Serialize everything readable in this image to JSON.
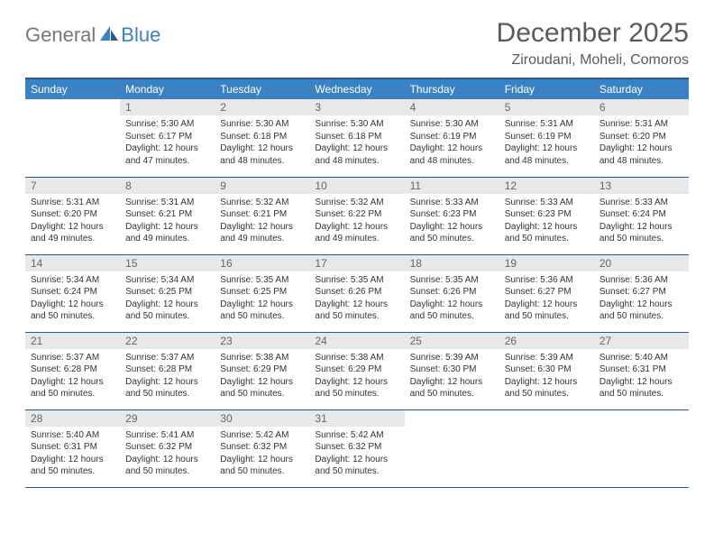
{
  "logo": {
    "part1": "General",
    "part2": "Blue"
  },
  "title": "December 2025",
  "location": "Ziroudani, Moheli, Comoros",
  "colors": {
    "header_bg": "#3b82c4",
    "header_border": "#2a5a8a",
    "daynum_bg": "#e8e8e8",
    "text": "#333333",
    "muted": "#666666",
    "logo_gray": "#777777",
    "logo_blue": "#3b82c4"
  },
  "weekdays": [
    "Sunday",
    "Monday",
    "Tuesday",
    "Wednesday",
    "Thursday",
    "Friday",
    "Saturday"
  ],
  "first_weekday_index": 1,
  "days": [
    {
      "n": 1,
      "sunrise": "5:30 AM",
      "sunset": "6:17 PM",
      "daylight": "12 hours and 47 minutes."
    },
    {
      "n": 2,
      "sunrise": "5:30 AM",
      "sunset": "6:18 PM",
      "daylight": "12 hours and 48 minutes."
    },
    {
      "n": 3,
      "sunrise": "5:30 AM",
      "sunset": "6:18 PM",
      "daylight": "12 hours and 48 minutes."
    },
    {
      "n": 4,
      "sunrise": "5:30 AM",
      "sunset": "6:19 PM",
      "daylight": "12 hours and 48 minutes."
    },
    {
      "n": 5,
      "sunrise": "5:31 AM",
      "sunset": "6:19 PM",
      "daylight": "12 hours and 48 minutes."
    },
    {
      "n": 6,
      "sunrise": "5:31 AM",
      "sunset": "6:20 PM",
      "daylight": "12 hours and 48 minutes."
    },
    {
      "n": 7,
      "sunrise": "5:31 AM",
      "sunset": "6:20 PM",
      "daylight": "12 hours and 49 minutes."
    },
    {
      "n": 8,
      "sunrise": "5:31 AM",
      "sunset": "6:21 PM",
      "daylight": "12 hours and 49 minutes."
    },
    {
      "n": 9,
      "sunrise": "5:32 AM",
      "sunset": "6:21 PM",
      "daylight": "12 hours and 49 minutes."
    },
    {
      "n": 10,
      "sunrise": "5:32 AM",
      "sunset": "6:22 PM",
      "daylight": "12 hours and 49 minutes."
    },
    {
      "n": 11,
      "sunrise": "5:33 AM",
      "sunset": "6:23 PM",
      "daylight": "12 hours and 50 minutes."
    },
    {
      "n": 12,
      "sunrise": "5:33 AM",
      "sunset": "6:23 PM",
      "daylight": "12 hours and 50 minutes."
    },
    {
      "n": 13,
      "sunrise": "5:33 AM",
      "sunset": "6:24 PM",
      "daylight": "12 hours and 50 minutes."
    },
    {
      "n": 14,
      "sunrise": "5:34 AM",
      "sunset": "6:24 PM",
      "daylight": "12 hours and 50 minutes."
    },
    {
      "n": 15,
      "sunrise": "5:34 AM",
      "sunset": "6:25 PM",
      "daylight": "12 hours and 50 minutes."
    },
    {
      "n": 16,
      "sunrise": "5:35 AM",
      "sunset": "6:25 PM",
      "daylight": "12 hours and 50 minutes."
    },
    {
      "n": 17,
      "sunrise": "5:35 AM",
      "sunset": "6:26 PM",
      "daylight": "12 hours and 50 minutes."
    },
    {
      "n": 18,
      "sunrise": "5:35 AM",
      "sunset": "6:26 PM",
      "daylight": "12 hours and 50 minutes."
    },
    {
      "n": 19,
      "sunrise": "5:36 AM",
      "sunset": "6:27 PM",
      "daylight": "12 hours and 50 minutes."
    },
    {
      "n": 20,
      "sunrise": "5:36 AM",
      "sunset": "6:27 PM",
      "daylight": "12 hours and 50 minutes."
    },
    {
      "n": 21,
      "sunrise": "5:37 AM",
      "sunset": "6:28 PM",
      "daylight": "12 hours and 50 minutes."
    },
    {
      "n": 22,
      "sunrise": "5:37 AM",
      "sunset": "6:28 PM",
      "daylight": "12 hours and 50 minutes."
    },
    {
      "n": 23,
      "sunrise": "5:38 AM",
      "sunset": "6:29 PM",
      "daylight": "12 hours and 50 minutes."
    },
    {
      "n": 24,
      "sunrise": "5:38 AM",
      "sunset": "6:29 PM",
      "daylight": "12 hours and 50 minutes."
    },
    {
      "n": 25,
      "sunrise": "5:39 AM",
      "sunset": "6:30 PM",
      "daylight": "12 hours and 50 minutes."
    },
    {
      "n": 26,
      "sunrise": "5:39 AM",
      "sunset": "6:30 PM",
      "daylight": "12 hours and 50 minutes."
    },
    {
      "n": 27,
      "sunrise": "5:40 AM",
      "sunset": "6:31 PM",
      "daylight": "12 hours and 50 minutes."
    },
    {
      "n": 28,
      "sunrise": "5:40 AM",
      "sunset": "6:31 PM",
      "daylight": "12 hours and 50 minutes."
    },
    {
      "n": 29,
      "sunrise": "5:41 AM",
      "sunset": "6:32 PM",
      "daylight": "12 hours and 50 minutes."
    },
    {
      "n": 30,
      "sunrise": "5:42 AM",
      "sunset": "6:32 PM",
      "daylight": "12 hours and 50 minutes."
    },
    {
      "n": 31,
      "sunrise": "5:42 AM",
      "sunset": "6:32 PM",
      "daylight": "12 hours and 50 minutes."
    }
  ],
  "labels": {
    "sunrise": "Sunrise:",
    "sunset": "Sunset:",
    "daylight": "Daylight:"
  }
}
